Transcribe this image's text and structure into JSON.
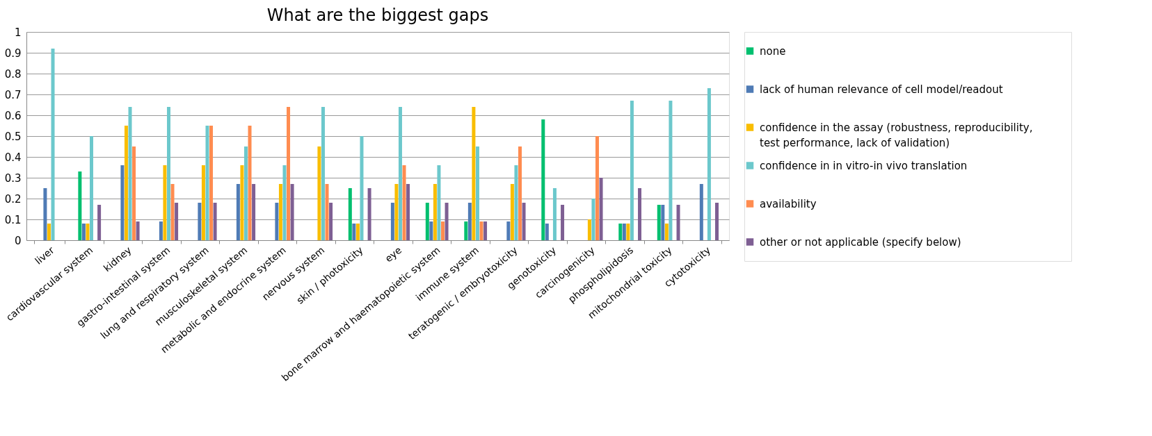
{
  "chart_data": {
    "type": "bar",
    "title": "What are the biggest gaps",
    "categories": [
      "liver",
      "cardiovascular system",
      "kidney",
      "gastro-intestinal system",
      "lung and respiratory system",
      "musculoskeletal system",
      "metabolic and endocrine system",
      "nervous system",
      "skin / photoxicity",
      "eye",
      "bone marrow and haematopoietic system",
      "immune system",
      "teratogenic / embryotoxicity",
      "genotoxicity",
      "carcinogenicity",
      "phospholipidosis",
      "mitochondrial toxicity",
      "cytotoxicity"
    ],
    "series": [
      {
        "name": "none",
        "color": "#00bf6f",
        "values": [
          0,
          0.33,
          0,
          0,
          0,
          0,
          0,
          0,
          0.25,
          0,
          0.18,
          0.09,
          0,
          0.58,
          0,
          0.08,
          0.17,
          0
        ]
      },
      {
        "name": "lack of human relevance of cell model/readout",
        "color": "#4f7bb5",
        "values": [
          0.25,
          0.08,
          0.36,
          0.09,
          0.18,
          0.27,
          0.18,
          0,
          0.08,
          0.18,
          0.09,
          0.18,
          0.09,
          0.08,
          0,
          0.08,
          0.17,
          0.27
        ]
      },
      {
        "name": "confidence in the assay (robustness, reproducibility, test performance, lack of validation)",
        "color": "#f9bd00",
        "values": [
          0.08,
          0.08,
          0.55,
          0.36,
          0.36,
          0.36,
          0.27,
          0.45,
          0.08,
          0.27,
          0.27,
          0.64,
          0.27,
          0,
          0.1,
          0.08,
          0.08,
          0
        ]
      },
      {
        "name": "confidence in in vitro-in vivo translation",
        "color": "#6cc8cc",
        "values": [
          0.92,
          0.5,
          0.64,
          0.64,
          0.55,
          0.45,
          0.36,
          0.64,
          0.5,
          0.64,
          0.36,
          0.45,
          0.36,
          0.25,
          0.2,
          0.67,
          0.67,
          0.73
        ]
      },
      {
        "name": "availability",
        "color": "#ff8c50",
        "values": [
          0,
          0,
          0.45,
          0.27,
          0.55,
          0.55,
          0.64,
          0.27,
          0,
          0.36,
          0.09,
          0.09,
          0.45,
          0,
          0.5,
          0,
          0,
          0
        ]
      },
      {
        "name": "other or not applicable (specify below)",
        "color": "#7e5f93",
        "values": [
          0,
          0.17,
          0.09,
          0.18,
          0.18,
          0.27,
          0.27,
          0.18,
          0.25,
          0.27,
          0.18,
          0.09,
          0.18,
          0.17,
          0.3,
          0.25,
          0.17,
          0.18
        ]
      }
    ],
    "ylim": [
      0,
      1
    ],
    "yticks": [
      0,
      0.1,
      0.2,
      0.3,
      0.4,
      0.5,
      0.6,
      0.7,
      0.8,
      0.9,
      1
    ],
    "grid": "y",
    "legend": "right"
  }
}
